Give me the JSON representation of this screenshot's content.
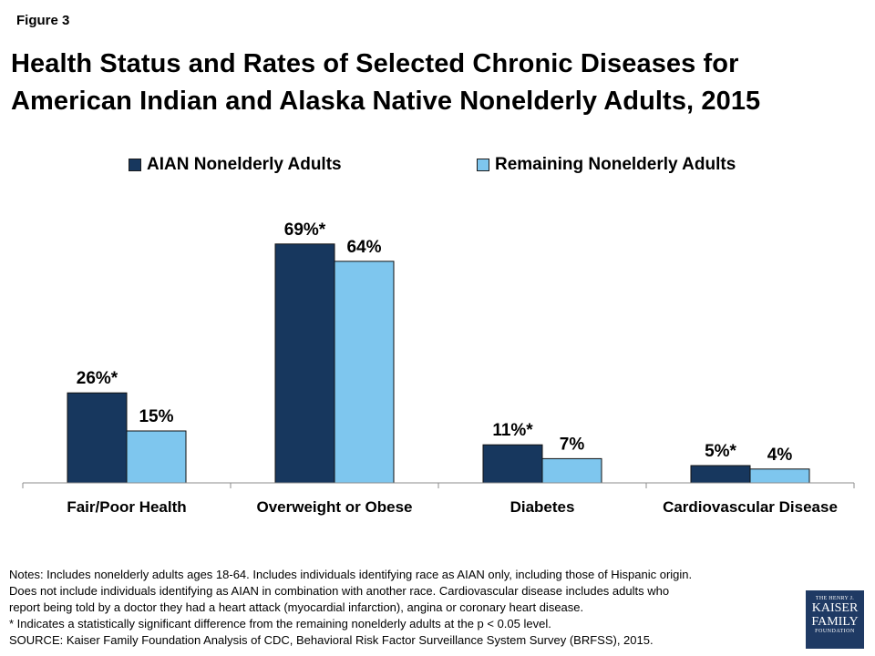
{
  "figure_label": "Figure 3",
  "title_line1": "Health Status and Rates of Selected Chronic Diseases for",
  "title_line2": "American Indian and Alaska Native Nonelderly Adults, 2015",
  "colors": {
    "series1": "#17375e",
    "series2": "#7ec6ee",
    "axis": "#8c8c8c"
  },
  "chart_data": {
    "type": "bar",
    "title": "Health Status and Rates of Selected Chronic Diseases for American Indian and Alaska Native Nonelderly Adults, 2015",
    "categories": [
      "Fair/Poor Health",
      "Overweight or Obese",
      "Diabetes",
      "Cardiovascular Disease"
    ],
    "series": [
      {
        "name": "AIAN Nonelderly Adults",
        "values": [
          26,
          69,
          11,
          5
        ],
        "labels": [
          "26%*",
          "69%*",
          "11%*",
          "5%*"
        ]
      },
      {
        "name": "Remaining Nonelderly Adults",
        "values": [
          15,
          64,
          7,
          4
        ],
        "labels": [
          "15%",
          "64%",
          "7%",
          "4%"
        ]
      }
    ],
    "xlabel": "",
    "ylabel": "",
    "ylim": [
      0,
      70
    ],
    "legend": "top",
    "grid": false
  },
  "notes": [
    "Notes: Includes nonelderly adults ages 18-64. Includes individuals identifying race as AIAN only, including those of Hispanic origin.",
    "Does not include individuals identifying as AIAN in combination with another race. Cardiovascular disease includes adults who",
    "report being told by a doctor they had a heart attack (myocardial infarction), angina or coronary heart disease.",
    "* Indicates a statistically significant difference from the remaining nonelderly adults at the p < 0.05 level.",
    "SOURCE: Kaiser Family Foundation Analysis of CDC, Behavioral Risk Factor Surveillance System Survey (BRFSS), 2015."
  ],
  "logo": {
    "line1": "THE HENRY J.",
    "line2": "KAISER",
    "line3": "FAMILY",
    "line4": "FOUNDATION"
  }
}
